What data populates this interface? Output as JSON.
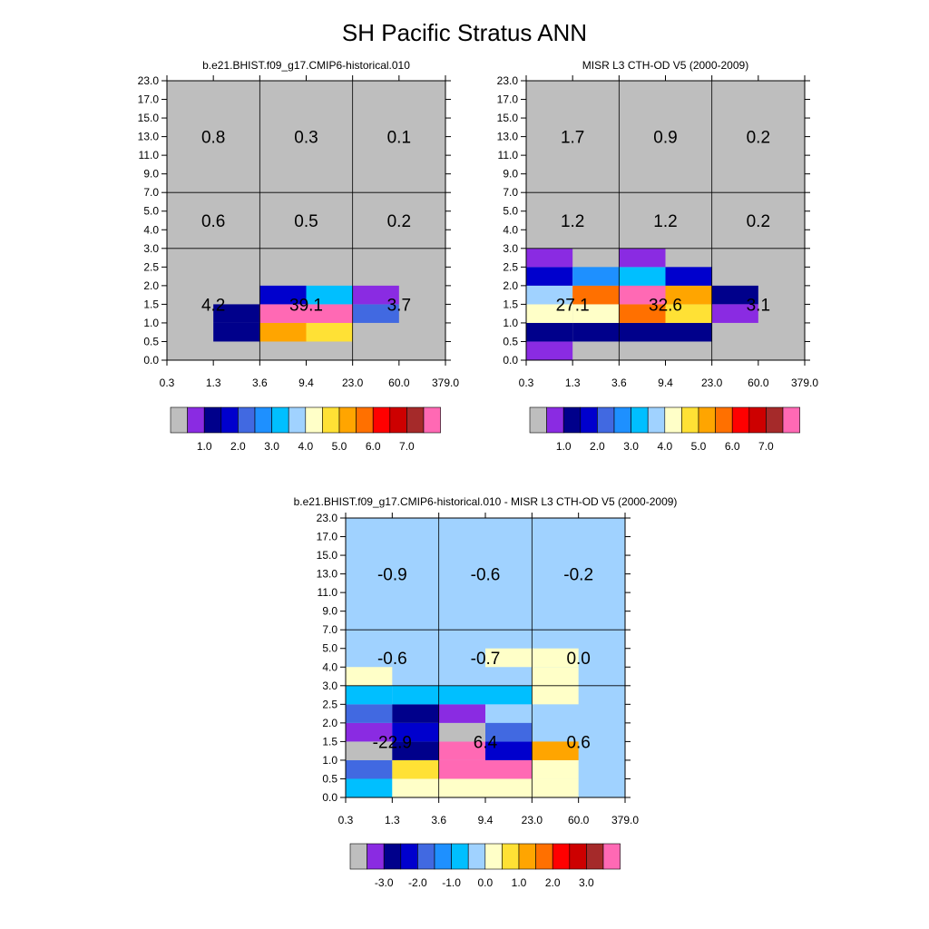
{
  "title": "SH Pacific Stratus ANN",
  "palette": {
    "fill_colors": [
      "#bebebe",
      "#8a2be2",
      "#00008b",
      "#0000cd",
      "#4169e1",
      "#1e90ff",
      "#00bfff",
      "#a0d2ff",
      "#ffffc8",
      "#ffe135",
      "#ffa500",
      "#ff7000",
      "#ff0000",
      "#cd0000",
      "#a52a2a",
      "#ff69b4"
    ]
  },
  "chart_data": [
    {
      "type": "heatmap",
      "title": "b.e21.BHIST.f09_g17.CMIP6-historical.010",
      "xlabel": "",
      "ylabel": "",
      "x_tick_labels": [
        "0.3",
        "1.3",
        "3.6",
        "9.4",
        "23.0",
        "60.0",
        "379.0"
      ],
      "y_tick_labels": [
        "0.0",
        "0.5",
        "1.0",
        "1.5",
        "2.0",
        "2.5",
        "3.0",
        "4.0",
        "5.0",
        "7.0",
        "9.0",
        "11.0",
        "13.0",
        "15.0",
        "17.0",
        "23.0"
      ],
      "background_color_index": 0,
      "cells": [
        [
          1,
          1,
          2,
          3
        ],
        [
          1,
          2,
          2,
          3
        ],
        [
          2,
          1,
          10,
          3
        ],
        [
          2,
          2,
          15,
          3
        ],
        [
          2,
          3,
          3,
          3
        ],
        [
          3,
          1,
          9,
          3
        ],
        [
          3,
          2,
          15,
          3
        ],
        [
          3,
          3,
          6,
          3
        ],
        [
          4,
          2,
          4,
          3
        ],
        [
          4,
          3,
          1,
          3
        ]
      ],
      "region_values": [
        {
          "x0": 0,
          "x1": 2,
          "y0": 0,
          "y1": 6,
          "label": "4.2"
        },
        {
          "x0": 2,
          "x1": 4,
          "y0": 0,
          "y1": 6,
          "label": "39.1"
        },
        {
          "x0": 4,
          "x1": 6,
          "y0": 0,
          "y1": 6,
          "label": "3.7"
        },
        {
          "x0": 0,
          "x1": 2,
          "y0": 6,
          "y1": 9,
          "label": "0.6"
        },
        {
          "x0": 2,
          "x1": 4,
          "y0": 6,
          "y1": 9,
          "label": "0.5"
        },
        {
          "x0": 4,
          "x1": 6,
          "y0": 6,
          "y1": 9,
          "label": "0.2"
        },
        {
          "x0": 0,
          "x1": 2,
          "y0": 9,
          "y1": 15,
          "label": "0.8"
        },
        {
          "x0": 2,
          "x1": 4,
          "y0": 9,
          "y1": 15,
          "label": "0.3"
        },
        {
          "x0": 4,
          "x1": 6,
          "y0": 9,
          "y1": 15,
          "label": "0.1"
        }
      ],
      "colorbar_labels": [
        "1.0",
        "2.0",
        "3.0",
        "4.0",
        "5.0",
        "6.0",
        "7.0"
      ]
    },
    {
      "type": "heatmap",
      "title": "MISR L3 CTH-OD V5 (2000-2009)",
      "xlabel": "",
      "ylabel": "",
      "x_tick_labels": [
        "0.3",
        "1.3",
        "3.6",
        "9.4",
        "23.0",
        "60.0",
        "379.0"
      ],
      "y_tick_labels": [
        "0.0",
        "0.5",
        "1.0",
        "1.5",
        "2.0",
        "2.5",
        "3.0",
        "4.0",
        "5.0",
        "7.0",
        "9.0",
        "11.0",
        "13.0",
        "15.0",
        "17.0",
        "23.0"
      ],
      "background_color_index": 0,
      "cells": [
        [
          0,
          0,
          1,
          3
        ],
        [
          0,
          1,
          2,
          3
        ],
        [
          0,
          2,
          8,
          3
        ],
        [
          0,
          3,
          7,
          3
        ],
        [
          0,
          4,
          3,
          3
        ],
        [
          0,
          5,
          1,
          3
        ],
        [
          1,
          1,
          2,
          3
        ],
        [
          1,
          2,
          8,
          3
        ],
        [
          1,
          3,
          11,
          3
        ],
        [
          1,
          4,
          5,
          3
        ],
        [
          2,
          1,
          2,
          3
        ],
        [
          2,
          2,
          11,
          3
        ],
        [
          2,
          3,
          15,
          3
        ],
        [
          2,
          4,
          6,
          3
        ],
        [
          2,
          5,
          1,
          3
        ],
        [
          3,
          1,
          2,
          3
        ],
        [
          3,
          2,
          9,
          3
        ],
        [
          3,
          3,
          10,
          3
        ],
        [
          3,
          4,
          3,
          3
        ],
        [
          4,
          3,
          2,
          3
        ],
        [
          4,
          2,
          1,
          3
        ]
      ],
      "region_values": [
        {
          "x0": 0,
          "x1": 2,
          "y0": 0,
          "y1": 6,
          "label": "27.1"
        },
        {
          "x0": 2,
          "x1": 4,
          "y0": 0,
          "y1": 6,
          "label": "32.6"
        },
        {
          "x0": 4,
          "x1": 6,
          "y0": 0,
          "y1": 6,
          "label": "3.1"
        },
        {
          "x0": 0,
          "x1": 2,
          "y0": 6,
          "y1": 9,
          "label": "1.2"
        },
        {
          "x0": 2,
          "x1": 4,
          "y0": 6,
          "y1": 9,
          "label": "1.2"
        },
        {
          "x0": 4,
          "x1": 6,
          "y0": 6,
          "y1": 9,
          "label": "0.2"
        },
        {
          "x0": 0,
          "x1": 2,
          "y0": 9,
          "y1": 15,
          "label": "1.7"
        },
        {
          "x0": 2,
          "x1": 4,
          "y0": 9,
          "y1": 15,
          "label": "0.9"
        },
        {
          "x0": 4,
          "x1": 6,
          "y0": 9,
          "y1": 15,
          "label": "0.2"
        }
      ],
      "colorbar_labels": [
        "1.0",
        "2.0",
        "3.0",
        "4.0",
        "5.0",
        "6.0",
        "7.0"
      ]
    },
    {
      "type": "heatmap",
      "title": "b.e21.BHIST.f09_g17.CMIP6-historical.010 - MISR L3 CTH-OD V5 (2000-2009)",
      "xlabel": "",
      "ylabel": "",
      "x_tick_labels": [
        "0.3",
        "1.3",
        "3.6",
        "9.4",
        "23.0",
        "60.0",
        "379.0"
      ],
      "y_tick_labels": [
        "0.0",
        "0.5",
        "1.0",
        "1.5",
        "2.0",
        "2.5",
        "3.0",
        "4.0",
        "5.0",
        "7.0",
        "9.0",
        "11.0",
        "13.0",
        "15.0",
        "17.0",
        "23.0"
      ],
      "background_color_index": 7,
      "cells": [
        [
          0,
          0,
          6,
          3
        ],
        [
          0,
          1,
          4,
          3
        ],
        [
          0,
          2,
          0,
          3
        ],
        [
          0,
          3,
          1,
          3
        ],
        [
          0,
          4,
          4,
          3
        ],
        [
          0,
          5,
          6,
          3
        ],
        [
          0,
          6,
          8,
          6
        ],
        [
          1,
          0,
          8,
          3
        ],
        [
          1,
          1,
          9,
          3
        ],
        [
          1,
          2,
          2,
          3
        ],
        [
          1,
          3,
          3,
          3
        ],
        [
          1,
          4,
          2,
          3
        ],
        [
          1,
          5,
          6,
          3
        ],
        [
          2,
          0,
          8,
          3
        ],
        [
          2,
          1,
          15,
          3
        ],
        [
          2,
          2,
          15,
          3
        ],
        [
          2,
          3,
          0,
          3
        ],
        [
          2,
          4,
          1,
          3
        ],
        [
          2,
          5,
          6,
          3
        ],
        [
          3,
          0,
          8,
          3
        ],
        [
          3,
          1,
          15,
          3
        ],
        [
          3,
          2,
          3,
          3
        ],
        [
          3,
          3,
          4,
          3
        ],
        [
          3,
          5,
          6,
          3
        ],
        [
          3,
          7,
          8,
          3
        ],
        [
          4,
          0,
          8,
          3
        ],
        [
          4,
          1,
          8,
          3
        ],
        [
          4,
          2,
          10,
          3
        ],
        [
          4,
          5,
          8,
          3
        ],
        [
          4,
          6,
          8,
          3
        ],
        [
          4,
          7,
          8,
          3
        ]
      ],
      "region_values": [
        {
          "x0": 0,
          "x1": 2,
          "y0": 0,
          "y1": 6,
          "label": "-22.9"
        },
        {
          "x0": 2,
          "x1": 4,
          "y0": 0,
          "y1": 6,
          "label": "6.4"
        },
        {
          "x0": 4,
          "x1": 6,
          "y0": 0,
          "y1": 6,
          "label": "0.6"
        },
        {
          "x0": 0,
          "x1": 2,
          "y0": 6,
          "y1": 9,
          "label": "-0.6"
        },
        {
          "x0": 2,
          "x1": 4,
          "y0": 6,
          "y1": 9,
          "label": "-0.7"
        },
        {
          "x0": 4,
          "x1": 6,
          "y0": 6,
          "y1": 9,
          "label": "0.0"
        },
        {
          "x0": 0,
          "x1": 2,
          "y0": 9,
          "y1": 15,
          "label": "-0.9"
        },
        {
          "x0": 2,
          "x1": 4,
          "y0": 9,
          "y1": 15,
          "label": "-0.6"
        },
        {
          "x0": 4,
          "x1": 6,
          "y0": 9,
          "y1": 15,
          "label": "-0.2"
        }
      ],
      "colorbar_labels": [
        "-3.0",
        "-2.0",
        "-1.0",
        "0.0",
        "1.0",
        "2.0",
        "3.0"
      ]
    }
  ]
}
